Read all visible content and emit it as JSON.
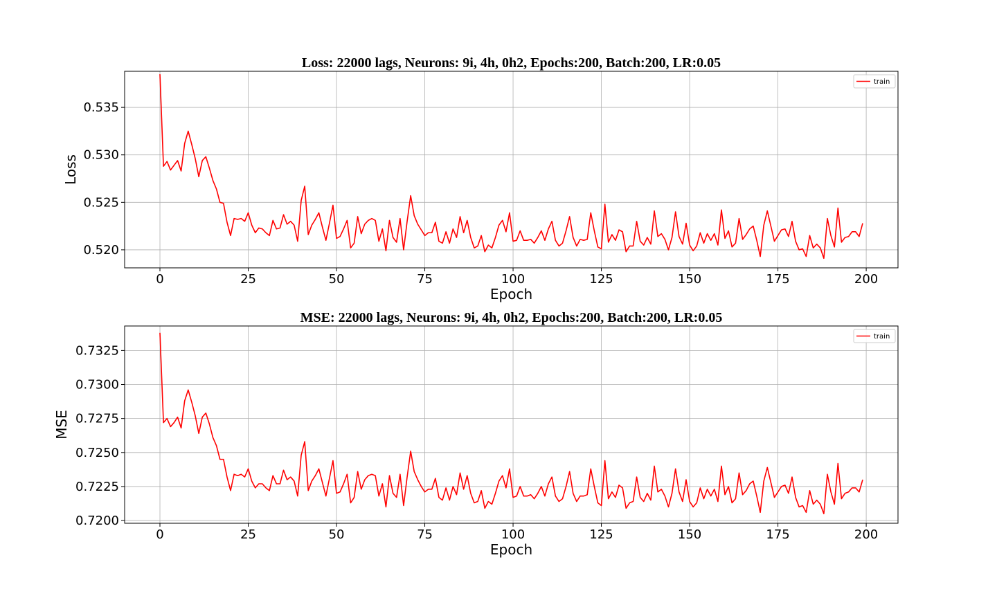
{
  "chart_data": [
    {
      "type": "line",
      "title": "Loss: 22000 lags, Neurons: 9i, 4h, 0h2, Epochs:200, Batch:200, LR:0.05",
      "xlabel": "Epoch",
      "ylabel": "Loss",
      "xlim": [
        -10,
        209
      ],
      "ylim": [
        0.5181,
        0.5388
      ],
      "xticks": [
        0,
        25,
        50,
        75,
        100,
        125,
        150,
        175,
        200
      ],
      "yticks": [
        0.52,
        0.525,
        0.53,
        0.535
      ],
      "ytick_labels": [
        "0.520",
        "0.525",
        "0.530",
        "0.535"
      ],
      "grid": true,
      "legend_position": "top-right",
      "series": [
        {
          "name": "train",
          "color": "#ff0000",
          "values": [
            0.5385,
            0.5288,
            0.5293,
            0.5284,
            0.5289,
            0.5294,
            0.5283,
            0.5312,
            0.5325,
            0.5311,
            0.5296,
            0.5277,
            0.5294,
            0.5298,
            0.5286,
            0.5273,
            0.5264,
            0.525,
            0.5249,
            0.5229,
            0.5215,
            0.5233,
            0.5232,
            0.5233,
            0.523,
            0.5239,
            0.5226,
            0.5218,
            0.5223,
            0.5222,
            0.5218,
            0.5215,
            0.5231,
            0.5222,
            0.5223,
            0.5237,
            0.5227,
            0.523,
            0.5226,
            0.5209,
            0.5252,
            0.5267,
            0.5216,
            0.5226,
            0.5232,
            0.5239,
            0.5224,
            0.521,
            0.5228,
            0.5247,
            0.5212,
            0.5214,
            0.5222,
            0.5231,
            0.5202,
            0.5207,
            0.5235,
            0.5217,
            0.5227,
            0.5231,
            0.5233,
            0.5231,
            0.5209,
            0.5222,
            0.5199,
            0.5231,
            0.5213,
            0.5208,
            0.5233,
            0.52,
            0.523,
            0.5257,
            0.5236,
            0.5227,
            0.5221,
            0.5215,
            0.5218,
            0.5218,
            0.5229,
            0.5209,
            0.5207,
            0.5219,
            0.5207,
            0.5222,
            0.5213,
            0.5235,
            0.5218,
            0.5231,
            0.5213,
            0.5202,
            0.5204,
            0.5215,
            0.5198,
            0.5205,
            0.5202,
            0.5213,
            0.5226,
            0.5231,
            0.5219,
            0.5239,
            0.5209,
            0.521,
            0.522,
            0.521,
            0.521,
            0.5211,
            0.5207,
            0.5213,
            0.522,
            0.521,
            0.5222,
            0.523,
            0.521,
            0.5204,
            0.5207,
            0.522,
            0.5235,
            0.5213,
            0.5204,
            0.5211,
            0.521,
            0.5211,
            0.5239,
            0.522,
            0.5203,
            0.5201,
            0.5248,
            0.5208,
            0.5216,
            0.521,
            0.5221,
            0.5219,
            0.5198,
            0.5204,
            0.5204,
            0.523,
            0.5209,
            0.5205,
            0.5213,
            0.5206,
            0.5241,
            0.5214,
            0.5217,
            0.5211,
            0.52,
            0.5213,
            0.524,
            0.5214,
            0.5206,
            0.5228,
            0.5205,
            0.5199,
            0.5204,
            0.5218,
            0.5207,
            0.5217,
            0.521,
            0.5217,
            0.5205,
            0.5242,
            0.5212,
            0.522,
            0.5203,
            0.5207,
            0.5233,
            0.5211,
            0.5216,
            0.5222,
            0.5225,
            0.521,
            0.5193,
            0.5226,
            0.5241,
            0.5225,
            0.5209,
            0.5215,
            0.5221,
            0.5222,
            0.5214,
            0.523,
            0.5209,
            0.52,
            0.5201,
            0.5193,
            0.5215,
            0.5202,
            0.5206,
            0.5202,
            0.5191,
            0.5233,
            0.5215,
            0.5203,
            0.5244,
            0.5208,
            0.5213,
            0.5214,
            0.5219,
            0.5219,
            0.5214,
            0.5228
          ]
        }
      ]
    },
    {
      "type": "line",
      "title": "MSE: 22000 lags, Neurons: 9i, 4h, 0h2, Epochs:200, Batch:200, LR:0.05",
      "xlabel": "Epoch",
      "ylabel": "MSE",
      "xlim": [
        -10,
        209
      ],
      "ylim": [
        0.7198,
        0.7343
      ],
      "xticks": [
        0,
        25,
        50,
        75,
        100,
        125,
        150,
        175,
        200
      ],
      "yticks": [
        0.72,
        0.7225,
        0.725,
        0.7275,
        0.73,
        0.7325
      ],
      "ytick_labels": [
        "0.7200",
        "0.7225",
        "0.7250",
        "0.7275",
        "0.7300",
        "0.7325"
      ],
      "grid": true,
      "legend_position": "top-right",
      "series": [
        {
          "name": "train",
          "color": "#ff0000",
          "values": [
            0.7338,
            0.7272,
            0.7275,
            0.7269,
            0.7272,
            0.7276,
            0.7268,
            0.7288,
            0.7296,
            0.7287,
            0.7277,
            0.7264,
            0.7276,
            0.7279,
            0.7271,
            0.7261,
            0.7255,
            0.7245,
            0.7245,
            0.7232,
            0.7222,
            0.7234,
            0.7233,
            0.7234,
            0.7232,
            0.7238,
            0.7229,
            0.7224,
            0.7227,
            0.7227,
            0.7224,
            0.7222,
            0.7233,
            0.7227,
            0.7227,
            0.7237,
            0.723,
            0.7232,
            0.7229,
            0.7218,
            0.7248,
            0.7258,
            0.7222,
            0.7229,
            0.7233,
            0.7238,
            0.7228,
            0.7218,
            0.7231,
            0.7244,
            0.722,
            0.7221,
            0.7227,
            0.7234,
            0.7213,
            0.7217,
            0.7236,
            0.7223,
            0.723,
            0.7233,
            0.7234,
            0.7233,
            0.7218,
            0.7227,
            0.721,
            0.7233,
            0.722,
            0.7217,
            0.7234,
            0.7211,
            0.7232,
            0.7251,
            0.7236,
            0.723,
            0.7225,
            0.7221,
            0.7223,
            0.7223,
            0.7231,
            0.7217,
            0.7215,
            0.7224,
            0.7215,
            0.7225,
            0.7219,
            0.7235,
            0.7223,
            0.7233,
            0.722,
            0.7213,
            0.7214,
            0.7222,
            0.7209,
            0.7214,
            0.7212,
            0.722,
            0.7229,
            0.7233,
            0.7224,
            0.7238,
            0.7217,
            0.7218,
            0.7225,
            0.7218,
            0.7218,
            0.7219,
            0.7216,
            0.722,
            0.7225,
            0.7218,
            0.7227,
            0.7232,
            0.7218,
            0.7214,
            0.7216,
            0.7225,
            0.7236,
            0.722,
            0.7214,
            0.7218,
            0.7218,
            0.7219,
            0.7238,
            0.7225,
            0.7213,
            0.7211,
            0.7244,
            0.7216,
            0.7221,
            0.7217,
            0.7226,
            0.7224,
            0.7209,
            0.7213,
            0.7214,
            0.7232,
            0.7217,
            0.7214,
            0.722,
            0.7215,
            0.724,
            0.7221,
            0.7223,
            0.7218,
            0.721,
            0.722,
            0.7238,
            0.7221,
            0.7214,
            0.723,
            0.7214,
            0.721,
            0.7213,
            0.7224,
            0.7216,
            0.7223,
            0.7218,
            0.7223,
            0.7214,
            0.724,
            0.7219,
            0.7225,
            0.7213,
            0.7216,
            0.7235,
            0.7219,
            0.7222,
            0.7227,
            0.7229,
            0.7218,
            0.7206,
            0.7229,
            0.7239,
            0.7228,
            0.7217,
            0.7221,
            0.7225,
            0.7226,
            0.722,
            0.7232,
            0.7217,
            0.721,
            0.7211,
            0.7206,
            0.7222,
            0.7212,
            0.7215,
            0.7212,
            0.7205,
            0.7234,
            0.7221,
            0.7212,
            0.7242,
            0.7216,
            0.722,
            0.7221,
            0.7224,
            0.7224,
            0.7221,
            0.723
          ]
        }
      ]
    }
  ]
}
